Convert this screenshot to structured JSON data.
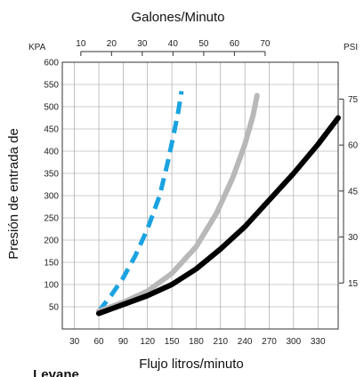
{
  "chart_data": {
    "type": "line",
    "title": "",
    "top_axis_label": "Galones/Minuto",
    "xlabel": "Flujo litros/minuto",
    "ylabel": "Presión de entrada de",
    "left_unit": "KPA",
    "right_unit": "PSI",
    "bottom_partial_text": "Levane",
    "xlim": [
      15,
      355
    ],
    "ylim": [
      0,
      600
    ],
    "x_ticks": [
      30,
      60,
      90,
      120,
      150,
      180,
      210,
      240,
      270,
      300,
      330
    ],
    "y_ticks": [
      50,
      100,
      150,
      200,
      250,
      300,
      350,
      400,
      450,
      500,
      550,
      600
    ],
    "top_ticks": [
      10,
      20,
      30,
      40,
      50,
      60,
      70
    ],
    "right_ticks": [
      15,
      30,
      45,
      60,
      75
    ],
    "grid": true,
    "legend": "none",
    "series": [
      {
        "style": "dashed",
        "color": "#1aa3e0",
        "x": [
          60,
          75,
          90,
          105,
          120,
          135,
          145,
          152,
          158,
          162
        ],
        "y": [
          40,
          75,
          115,
          165,
          225,
          300,
          375,
          435,
          490,
          535
        ]
      },
      {
        "style": "solid",
        "color": "#b8b8b8",
        "x": [
          60,
          90,
          120,
          150,
          180,
          205,
          225,
          240,
          250,
          255
        ],
        "y": [
          40,
          60,
          85,
          125,
          185,
          260,
          340,
          415,
          480,
          525
        ]
      },
      {
        "style": "solid",
        "color": "#000000",
        "x": [
          60,
          90,
          120,
          150,
          180,
          210,
          240,
          270,
          300,
          330,
          355
        ],
        "y": [
          35,
          55,
          75,
          100,
          135,
          180,
          230,
          290,
          350,
          415,
          475
        ]
      }
    ]
  }
}
